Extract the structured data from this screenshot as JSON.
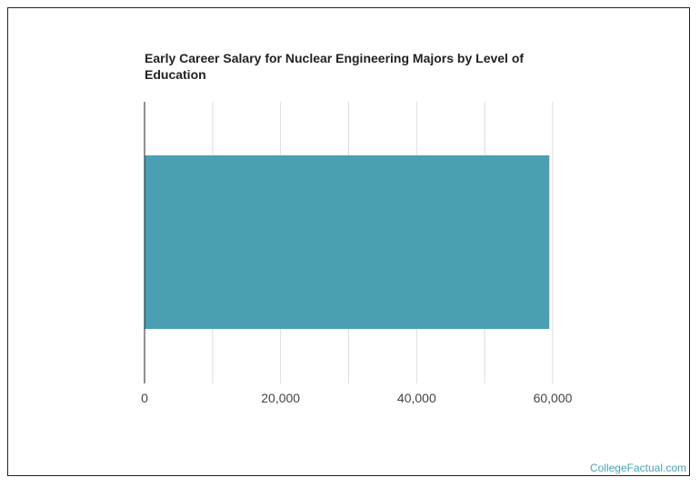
{
  "chart_data": {
    "type": "bar",
    "orientation": "horizontal",
    "title": "Early Career Salary for Nuclear Engineering Majors by Level of Education",
    "xlabel": "",
    "ylabel": "",
    "categories": [
      ""
    ],
    "values": [
      59500
    ],
    "xlim": [
      0,
      60000
    ],
    "ticks": [
      0,
      20000,
      40000,
      60000
    ],
    "tick_labels": [
      "0",
      "20,000",
      "40,000",
      "60,000"
    ],
    "grid": true,
    "bar_color": "#4aa0b2",
    "grid_color": "#dddddd",
    "axis_color": "#222222"
  },
  "watermark": "CollegeFactual.com"
}
